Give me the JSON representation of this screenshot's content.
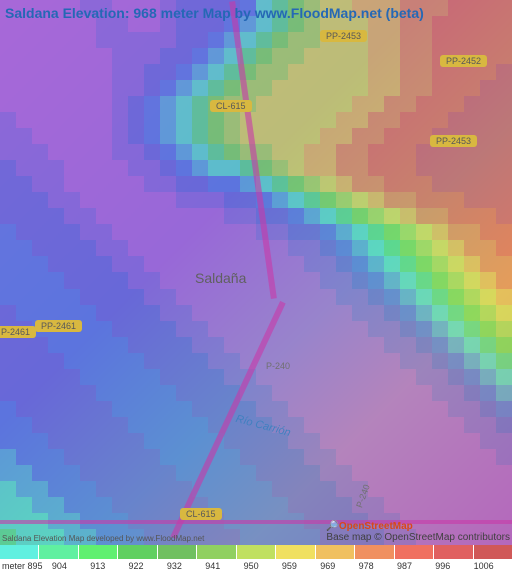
{
  "title": "Saldana Elevation: 968 meter Map by www.FloodMap.net (beta)",
  "town": "Saldaña",
  "river": "Río Carrión",
  "roads": {
    "cl615_top": "CL-615",
    "cl615_bot": "CL-615",
    "pp2453_top": "PP-2453",
    "pp2452": "PP-2452",
    "pp2453_right": "PP-2453",
    "pp2461_left": "PP-2461",
    "p2461": "P-2461",
    "p240_mid": "P-240",
    "p240_bot": "P-240"
  },
  "attribution": {
    "osm": "OpenStreetMap",
    "base": "Base map © OpenStreetMap contributors"
  },
  "credit": "Saldana Elevation Map developed by www.FloodMap.net",
  "legend": {
    "unit": "meter",
    "stops": [
      {
        "v": 895,
        "c": "#60f0e0"
      },
      {
        "v": 904,
        "c": "#60f0a0"
      },
      {
        "v": 913,
        "c": "#60f070"
      },
      {
        "v": 922,
        "c": "#60d060"
      },
      {
        "v": 932,
        "c": "#70c060"
      },
      {
        "v": 941,
        "c": "#90d060"
      },
      {
        "v": 950,
        "c": "#c0e060"
      },
      {
        "v": 959,
        "c": "#f0e060"
      },
      {
        "v": 969,
        "c": "#f0c060"
      },
      {
        "v": 978,
        "c": "#f09060"
      },
      {
        "v": 987,
        "c": "#f07060"
      },
      {
        "v": 996,
        "c": "#e06060"
      },
      {
        "v": 1006,
        "c": "#d05858"
      }
    ]
  },
  "elevation_grid": {
    "cols": 32,
    "rows": 34,
    "palette": {
      "0": "#a868d8",
      "1": "#8868d8",
      "2": "#6868d8",
      "3": "#5878e0",
      "4": "#58a8d8",
      "5": "#58d8c8",
      "6": "#58d888",
      "7": "#78d858",
      "8": "#a8d858",
      "9": "#d8d858",
      "10": "#e8b858",
      "11": "#e88858",
      "12": "#e86858",
      "13": "#d85868"
    },
    "data": [
      [
        0,
        0,
        0,
        0,
        0,
        1,
        1,
        0,
        0,
        0,
        1,
        2,
        2,
        2,
        2,
        3,
        5,
        6,
        7,
        8,
        9,
        9,
        10,
        10,
        10,
        11,
        11,
        11,
        12,
        12,
        12,
        12
      ],
      [
        0,
        0,
        0,
        0,
        0,
        0,
        1,
        1,
        0,
        0,
        1,
        2,
        2,
        2,
        3,
        4,
        5,
        6,
        7,
        8,
        9,
        9,
        9,
        10,
        10,
        11,
        11,
        12,
        12,
        12,
        12,
        12
      ],
      [
        0,
        0,
        0,
        0,
        0,
        0,
        1,
        1,
        1,
        1,
        1,
        2,
        2,
        3,
        4,
        5,
        6,
        7,
        8,
        8,
        9,
        9,
        9,
        10,
        10,
        11,
        11,
        12,
        12,
        12,
        12,
        12
      ],
      [
        0,
        0,
        0,
        0,
        0,
        0,
        0,
        1,
        1,
        1,
        2,
        2,
        3,
        4,
        5,
        6,
        7,
        8,
        8,
        9,
        9,
        9,
        9,
        10,
        10,
        11,
        11,
        12,
        12,
        12,
        12,
        12
      ],
      [
        0,
        0,
        0,
        0,
        0,
        0,
        0,
        1,
        1,
        2,
        2,
        3,
        4,
        5,
        6,
        7,
        8,
        8,
        9,
        9,
        9,
        9,
        9,
        10,
        10,
        11,
        11,
        12,
        12,
        12,
        12,
        13
      ],
      [
        0,
        0,
        0,
        0,
        0,
        0,
        0,
        1,
        1,
        2,
        3,
        4,
        5,
        6,
        7,
        8,
        8,
        9,
        9,
        9,
        9,
        9,
        9,
        10,
        10,
        11,
        11,
        12,
        12,
        12,
        13,
        13
      ],
      [
        0,
        0,
        0,
        0,
        0,
        0,
        0,
        1,
        2,
        3,
        4,
        5,
        6,
        7,
        8,
        8,
        9,
        9,
        9,
        9,
        9,
        9,
        10,
        10,
        11,
        11,
        12,
        12,
        12,
        13,
        13,
        13
      ],
      [
        1,
        0,
        0,
        0,
        0,
        0,
        0,
        1,
        2,
        3,
        4,
        5,
        6,
        7,
        8,
        9,
        9,
        9,
        9,
        9,
        9,
        10,
        10,
        11,
        11,
        12,
        12,
        12,
        13,
        13,
        13,
        13
      ],
      [
        1,
        1,
        0,
        0,
        0,
        0,
        0,
        1,
        2,
        3,
        4,
        5,
        6,
        7,
        8,
        9,
        9,
        9,
        9,
        9,
        10,
        10,
        11,
        11,
        12,
        12,
        12,
        13,
        13,
        13,
        13,
        13
      ],
      [
        1,
        1,
        1,
        0,
        0,
        0,
        0,
        1,
        1,
        2,
        3,
        4,
        5,
        6,
        7,
        8,
        8,
        9,
        9,
        10,
        10,
        11,
        11,
        12,
        12,
        12,
        13,
        13,
        13,
        13,
        13,
        13
      ],
      [
        2,
        1,
        1,
        1,
        0,
        0,
        0,
        0,
        1,
        1,
        2,
        3,
        4,
        5,
        5,
        6,
        7,
        8,
        9,
        10,
        10,
        11,
        11,
        12,
        12,
        12,
        13,
        13,
        13,
        13,
        13,
        13
      ],
      [
        2,
        2,
        1,
        1,
        0,
        0,
        0,
        0,
        0,
        1,
        1,
        2,
        2,
        3,
        3,
        4,
        5,
        6,
        7,
        8,
        9,
        10,
        11,
        11,
        12,
        12,
        12,
        13,
        13,
        13,
        13,
        13
      ],
      [
        2,
        2,
        2,
        1,
        1,
        0,
        0,
        0,
        0,
        0,
        0,
        1,
        1,
        1,
        2,
        2,
        3,
        4,
        5,
        6,
        7,
        8,
        9,
        10,
        11,
        11,
        12,
        12,
        12,
        13,
        13,
        13
      ],
      [
        2,
        2,
        2,
        2,
        1,
        1,
        0,
        0,
        0,
        0,
        0,
        0,
        0,
        0,
        1,
        1,
        2,
        2,
        3,
        4,
        5,
        6,
        7,
        8,
        9,
        10,
        11,
        11,
        12,
        12,
        12,
        13
      ],
      [
        3,
        2,
        2,
        2,
        2,
        1,
        1,
        0,
        0,
        0,
        0,
        0,
        0,
        0,
        0,
        0,
        1,
        1,
        2,
        2,
        3,
        4,
        5,
        6,
        7,
        8,
        9,
        10,
        11,
        11,
        12,
        12
      ],
      [
        3,
        3,
        2,
        2,
        2,
        2,
        1,
        1,
        0,
        0,
        0,
        0,
        0,
        0,
        0,
        0,
        0,
        0,
        1,
        1,
        2,
        3,
        4,
        5,
        6,
        7,
        8,
        9,
        10,
        11,
        11,
        12
      ],
      [
        3,
        3,
        3,
        2,
        2,
        2,
        2,
        1,
        1,
        0,
        0,
        0,
        0,
        0,
        0,
        0,
        0,
        0,
        0,
        1,
        1,
        2,
        3,
        4,
        5,
        6,
        7,
        8,
        9,
        10,
        11,
        11
      ],
      [
        3,
        3,
        3,
        3,
        2,
        2,
        2,
        2,
        1,
        1,
        0,
        0,
        0,
        0,
        0,
        0,
        0,
        0,
        0,
        0,
        1,
        1,
        2,
        3,
        4,
        5,
        6,
        7,
        8,
        9,
        10,
        11
      ],
      [
        3,
        3,
        3,
        3,
        3,
        2,
        2,
        2,
        2,
        1,
        1,
        0,
        0,
        0,
        0,
        0,
        0,
        0,
        0,
        0,
        0,
        1,
        1,
        2,
        3,
        4,
        5,
        6,
        7,
        8,
        9,
        10
      ],
      [
        2,
        3,
        3,
        3,
        3,
        3,
        2,
        2,
        2,
        2,
        1,
        1,
        0,
        0,
        0,
        0,
        0,
        0,
        0,
        0,
        0,
        0,
        1,
        1,
        2,
        3,
        4,
        5,
        6,
        7,
        8,
        9
      ],
      [
        2,
        2,
        3,
        3,
        3,
        3,
        3,
        2,
        2,
        2,
        2,
        1,
        1,
        0,
        0,
        0,
        0,
        0,
        0,
        0,
        0,
        0,
        0,
        1,
        1,
        2,
        3,
        4,
        5,
        6,
        7,
        8
      ],
      [
        2,
        2,
        2,
        3,
        3,
        3,
        3,
        3,
        2,
        2,
        2,
        2,
        1,
        1,
        0,
        0,
        0,
        0,
        0,
        0,
        0,
        0,
        0,
        0,
        1,
        1,
        2,
        3,
        4,
        5,
        6,
        7
      ],
      [
        2,
        2,
        2,
        2,
        3,
        3,
        3,
        3,
        3,
        2,
        2,
        2,
        2,
        1,
        1,
        0,
        0,
        0,
        0,
        0,
        0,
        0,
        0,
        0,
        0,
        1,
        1,
        2,
        3,
        4,
        5,
        6
      ],
      [
        2,
        2,
        2,
        2,
        2,
        3,
        3,
        3,
        3,
        3,
        2,
        2,
        2,
        2,
        1,
        1,
        0,
        0,
        0,
        0,
        0,
        0,
        0,
        0,
        0,
        0,
        1,
        1,
        2,
        3,
        4,
        5
      ],
      [
        2,
        2,
        2,
        2,
        2,
        2,
        3,
        3,
        3,
        3,
        3,
        2,
        2,
        2,
        2,
        1,
        1,
        0,
        0,
        0,
        0,
        0,
        0,
        0,
        0,
        0,
        0,
        1,
        1,
        2,
        3,
        4
      ],
      [
        3,
        2,
        2,
        2,
        2,
        2,
        2,
        3,
        3,
        3,
        3,
        3,
        2,
        2,
        2,
        2,
        1,
        1,
        0,
        0,
        0,
        0,
        0,
        0,
        0,
        0,
        0,
        0,
        1,
        1,
        2,
        3
      ],
      [
        3,
        3,
        2,
        2,
        2,
        2,
        2,
        2,
        3,
        3,
        3,
        3,
        3,
        2,
        2,
        2,
        2,
        1,
        1,
        0,
        0,
        0,
        0,
        0,
        0,
        0,
        0,
        0,
        0,
        1,
        1,
        2
      ],
      [
        3,
        3,
        3,
        2,
        2,
        2,
        2,
        2,
        2,
        3,
        3,
        3,
        3,
        3,
        2,
        2,
        2,
        2,
        1,
        1,
        0,
        0,
        0,
        0,
        0,
        0,
        0,
        0,
        0,
        0,
        1,
        1
      ],
      [
        4,
        3,
        3,
        3,
        2,
        2,
        2,
        2,
        2,
        2,
        3,
        3,
        3,
        3,
        3,
        2,
        2,
        2,
        2,
        1,
        1,
        0,
        0,
        0,
        0,
        0,
        0,
        0,
        0,
        0,
        0,
        1
      ],
      [
        4,
        4,
        3,
        3,
        3,
        2,
        2,
        2,
        2,
        2,
        2,
        3,
        3,
        3,
        3,
        3,
        2,
        2,
        2,
        2,
        1,
        1,
        0,
        0,
        0,
        0,
        0,
        0,
        0,
        0,
        0,
        0
      ],
      [
        5,
        4,
        4,
        3,
        3,
        3,
        2,
        2,
        2,
        2,
        2,
        2,
        3,
        3,
        3,
        3,
        3,
        2,
        2,
        2,
        2,
        1,
        1,
        0,
        0,
        0,
        0,
        0,
        0,
        0,
        0,
        0
      ],
      [
        5,
        5,
        4,
        4,
        3,
        3,
        3,
        2,
        2,
        2,
        2,
        2,
        2,
        3,
        3,
        3,
        3,
        3,
        2,
        2,
        2,
        2,
        1,
        1,
        0,
        0,
        0,
        0,
        0,
        0,
        0,
        0
      ],
      [
        5,
        5,
        5,
        4,
        4,
        3,
        3,
        3,
        2,
        2,
        2,
        2,
        2,
        2,
        3,
        3,
        3,
        3,
        3,
        2,
        2,
        2,
        2,
        1,
        1,
        0,
        0,
        0,
        0,
        0,
        0,
        0
      ],
      [
        6,
        5,
        5,
        5,
        4,
        4,
        3,
        3,
        3,
        2,
        2,
        2,
        2,
        2,
        2,
        3,
        3,
        3,
        3,
        3,
        2,
        2,
        2,
        2,
        1,
        1,
        0,
        0,
        0,
        0,
        0,
        0
      ]
    ]
  }
}
